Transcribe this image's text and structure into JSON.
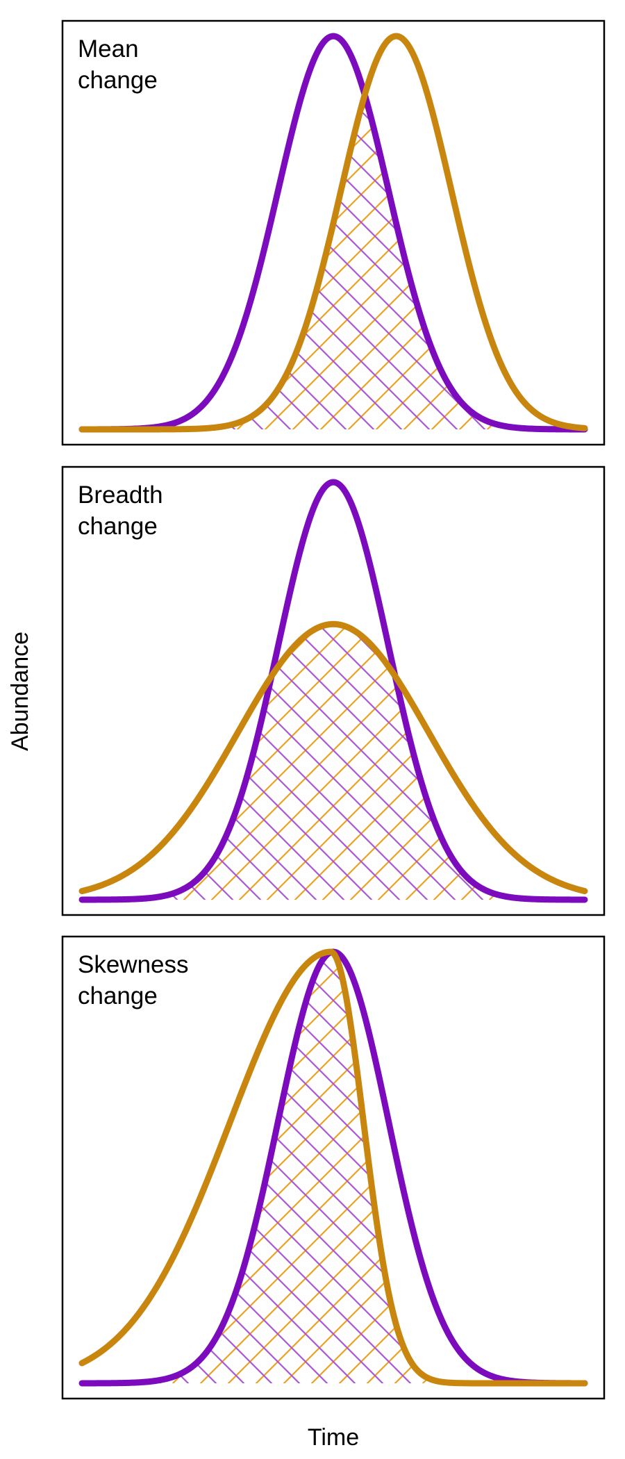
{
  "figure": {
    "xlabel": "Time",
    "ylabel": "Abundance"
  },
  "colors": {
    "purple": "#7B0BBD",
    "orange": "#C8860E",
    "hatch_purple": "#A857D6",
    "hatch_orange": "#F0A020"
  },
  "chart_data": [
    {
      "type": "line",
      "title_lines": [
        "Mean",
        "change"
      ],
      "xlim": [
        0,
        10
      ],
      "ylim": [
        0,
        1
      ],
      "overlap_hatched": true,
      "series": [
        {
          "color": "purple",
          "shape": "gaussian",
          "mean": 5.0,
          "sd": 1.1,
          "peak": 1.0
        },
        {
          "color": "orange",
          "shape": "gaussian",
          "mean": 6.25,
          "sd": 1.1,
          "peak": 1.0
        }
      ]
    },
    {
      "type": "line",
      "title_lines": [
        "Breadth",
        "change"
      ],
      "xlim": [
        0,
        10
      ],
      "ylim": [
        0,
        1
      ],
      "overlap_hatched": true,
      "series": [
        {
          "color": "purple",
          "shape": "gaussian",
          "mean": 5.0,
          "sd": 1.1,
          "peak": 1.0
        },
        {
          "color": "orange",
          "shape": "gaussian",
          "mean": 5.0,
          "sd": 1.9,
          "peak": 0.66
        }
      ]
    },
    {
      "type": "line",
      "title_lines": [
        "Skewness",
        "change"
      ],
      "xlim": [
        0,
        10
      ],
      "ylim": [
        0,
        1
      ],
      "overlap_hatched": true,
      "series": [
        {
          "color": "purple",
          "shape": "gaussian",
          "mean": 5.0,
          "sd": 1.1,
          "peak": 1.0
        },
        {
          "color": "orange",
          "shape": "skewed",
          "mode": 4.95,
          "sd_left": 2.0,
          "sd_right": 0.65,
          "peak": 1.0
        }
      ]
    }
  ]
}
